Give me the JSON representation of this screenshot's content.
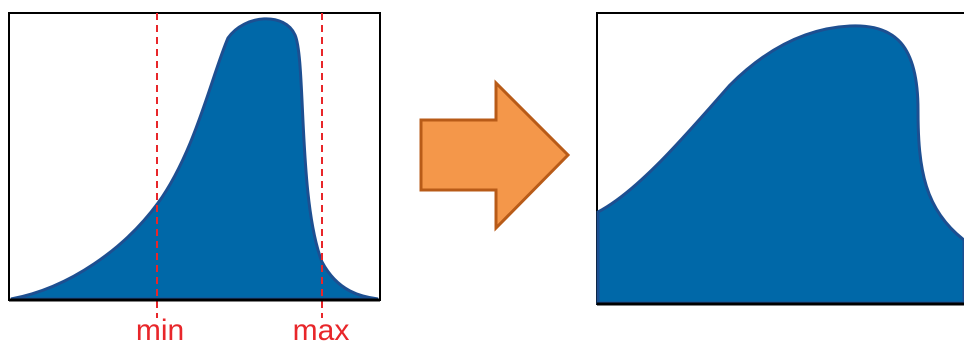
{
  "left_panel": {
    "min_label": "min",
    "max_label": "max"
  },
  "colors": {
    "distribution_fill": "#0068a8",
    "distribution_stroke": "#1d4f91",
    "marker_line": "#e8262a",
    "marker_text": "#e8262a",
    "arrow_fill": "#f4974a",
    "arrow_stroke": "#b85b18",
    "frame": "#000000"
  },
  "arrow": {
    "direction": "right"
  }
}
